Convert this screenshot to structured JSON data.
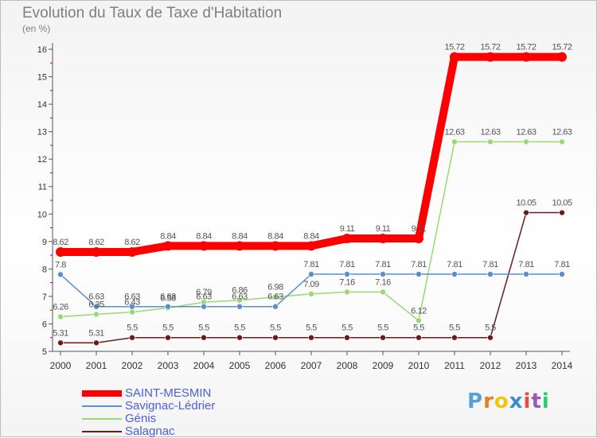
{
  "header": {
    "title": "Evolution du Taux de Taxe d'Habitation",
    "unit": "(en %)"
  },
  "chart_data": {
    "type": "line",
    "title": "Evolution du Taux de Taxe d'Habitation",
    "ylabel": "(en %)",
    "xlabel": "",
    "x": [
      "2000",
      "2001",
      "2002",
      "2003",
      "2004",
      "2005",
      "2006",
      "2007",
      "2008",
      "2009",
      "2010",
      "2011",
      "2012",
      "2013",
      "2014"
    ],
    "ylim": [
      5,
      16
    ],
    "yticks": [
      "5",
      "6",
      "7",
      "8",
      "9",
      "10",
      "11",
      "12",
      "13",
      "14",
      "15",
      "16"
    ],
    "grid": false,
    "legend_position": "bottom-left",
    "series": [
      {
        "name": "SAINT-MESMIN",
        "color": "#ff0000",
        "values": [
          8.62,
          8.62,
          8.62,
          8.84,
          8.84,
          8.84,
          8.84,
          8.84,
          9.11,
          9.11,
          9.11,
          15.72,
          15.72,
          15.72,
          15.72
        ],
        "labels": [
          "8.62",
          "8.62",
          "8.62",
          "8.84",
          "8.84",
          "8.84",
          "8.84",
          "8.84",
          "9.11",
          "9.11",
          "9.11",
          "15.72",
          "15.72",
          "15.72",
          "15.72"
        ]
      },
      {
        "name": "Savignac-Lédrier",
        "color": "#5b8fc9",
        "values": [
          7.8,
          6.63,
          6.63,
          6.63,
          6.63,
          6.63,
          6.63,
          7.81,
          7.81,
          7.81,
          7.81,
          7.81,
          7.81,
          7.81,
          7.81
        ],
        "labels": [
          "7.8",
          "6.63",
          "6.63",
          "6.63",
          "6.63",
          "6.63",
          "6.63",
          "7.81",
          "7.81",
          "7.81",
          "7.81",
          "7.81",
          "7.81",
          "7.81",
          "7.81"
        ]
      },
      {
        "name": "Génis",
        "color": "#99d973",
        "values": [
          6.26,
          6.35,
          6.43,
          6.58,
          6.79,
          6.86,
          6.98,
          7.09,
          7.16,
          7.16,
          6.12,
          12.63,
          12.63,
          12.63,
          12.63
        ],
        "labels": [
          "6.26",
          "6.35",
          "6.43",
          "6.58",
          "6.79",
          "6.86",
          "6.98",
          "7.09",
          "7.16",
          "7.16",
          "6.12",
          "12.63",
          "12.63",
          "12.63",
          "12.63"
        ]
      },
      {
        "name": "Salagnac",
        "color": "#6e1a1a",
        "values": [
          5.31,
          5.31,
          5.5,
          5.5,
          5.5,
          5.5,
          5.5,
          5.5,
          5.5,
          5.5,
          5.5,
          5.5,
          5.5,
          10.05,
          10.05
        ],
        "labels": [
          "5.31",
          "5.31",
          "5.5",
          "5.5",
          "5.5",
          "5.5",
          "5.5",
          "5.5",
          "5.5",
          "5.5",
          "5.5",
          "5.5",
          "5.5",
          "10.05",
          "10.05"
        ]
      }
    ]
  },
  "logo": {
    "letters": [
      "P",
      "r",
      "o",
      "x",
      "i",
      "t",
      "i"
    ],
    "colors": [
      "#5aa0d8",
      "#e67e22",
      "#f1c40f",
      "#3c8dd0",
      "#e74c3c",
      "#9b59b6",
      "#2ecc71"
    ]
  }
}
